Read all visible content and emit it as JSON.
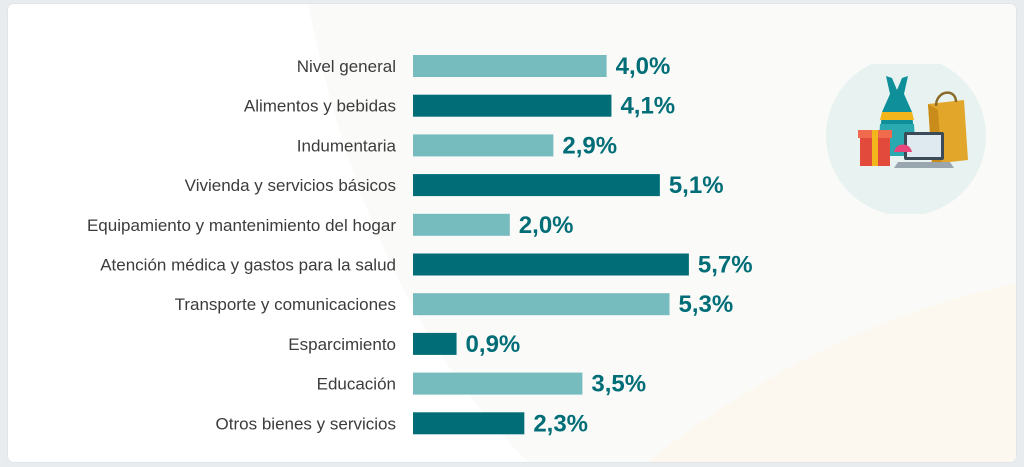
{
  "chart_data": {
    "type": "bar",
    "orientation": "horizontal",
    "categories": [
      "Nivel general",
      "Alimentos y bebidas",
      "Indumentaria",
      "Vivienda y servicios básicos",
      "Equipamiento y mantenimiento del hogar",
      "Atención médica y gastos para la salud",
      "Transporte y comunicaciones",
      "Esparcimiento",
      "Educación",
      "Otros bienes y servicios"
    ],
    "values": [
      4.0,
      4.1,
      2.9,
      5.1,
      2.0,
      5.7,
      5.3,
      0.9,
      3.5,
      2.3
    ],
    "value_labels": [
      "4,0%",
      "4,1%",
      "2,9%",
      "5,1%",
      "2,0%",
      "5,7%",
      "5,3%",
      "0,9%",
      "3,5%",
      "2,3%"
    ],
    "bar_colors": [
      "#76bcbf",
      "#006d77",
      "#76bcbf",
      "#006d77",
      "#76bcbf",
      "#006d77",
      "#76bcbf",
      "#006d77",
      "#76bcbf",
      "#006d77"
    ],
    "value_color": "#006d77",
    "title": "",
    "xlabel": "",
    "ylabel": "",
    "xlim": [
      0,
      5.7
    ],
    "grid": false,
    "legend": false
  },
  "illustration": {
    "icon": "shopping-illustration-icon",
    "circle_color": "#e8f3f1"
  }
}
